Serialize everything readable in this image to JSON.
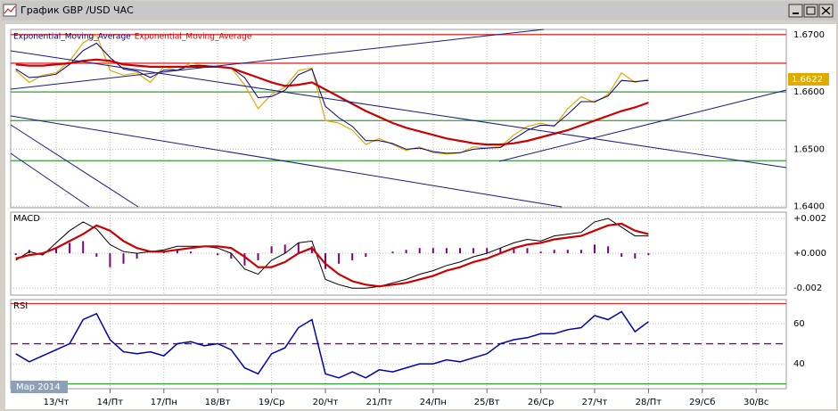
{
  "window": {
    "title": "График GBP /USD  ЧАС"
  },
  "time_axis": {
    "labels": [
      "13/Чт",
      "14/Пт",
      "17/Пн",
      "18/Вт",
      "19/Ср",
      "20/Чт",
      "21/Пт",
      "24/Пн",
      "25/Вт",
      "26/Ср",
      "27/Чт",
      "28/Пт",
      "29/Сб",
      "30/Вс"
    ],
    "month": "Мар 2014"
  },
  "chart_data": [
    {
      "type": "line",
      "x": [
        -0.75,
        -0.5,
        -0.25,
        0,
        0.25,
        0.5,
        0.75,
        1,
        1.25,
        1.5,
        1.75,
        2,
        2.25,
        2.5,
        2.75,
        3,
        3.25,
        3.5,
        3.75,
        4,
        4.25,
        4.5,
        4.75,
        5,
        5.25,
        5.5,
        5.75,
        6,
        6.25,
        6.5,
        6.75,
        7,
        7.25,
        7.5,
        7.75,
        8,
        8.25,
        8.5,
        8.75,
        9,
        9.25,
        9.5,
        9.75,
        10,
        10.25,
        10.5,
        10.75,
        11
      ],
      "color": "#e0aa00",
      "values": [
        1.66375,
        1.66167,
        1.66292,
        1.66333,
        1.66542,
        1.66854,
        1.67,
        1.66375,
        1.66292,
        1.66333,
        1.66167,
        1.66438,
        1.66375,
        1.665,
        1.66458,
        1.66438,
        1.66417,
        1.66125,
        1.65708,
        1.65958,
        1.66083,
        1.66375,
        1.66417,
        1.655,
        1.65458,
        1.65333,
        1.65083,
        1.65188,
        1.65083,
        1.64979,
        1.65042,
        1.64938,
        1.64917,
        1.64938,
        1.65042,
        1.65021,
        1.65042,
        1.6525,
        1.65396,
        1.65458,
        1.65396,
        1.65708,
        1.65917,
        1.65813,
        1.65958,
        1.66333,
        1.66167,
        1.6622
      ],
      "series": [
        {
          "name": "Exponential_Moving_Average",
          "color": "#000080",
          "values": [
            1.664,
            1.6625,
            1.6627,
            1.6631,
            1.6648,
            1.6672,
            1.6685,
            1.666,
            1.664,
            1.6636,
            1.6625,
            1.6638,
            1.6638,
            1.6646,
            1.6646,
            1.6644,
            1.6642,
            1.6625,
            1.659,
            1.6592,
            1.6603,
            1.663,
            1.664,
            1.6575,
            1.6555,
            1.654,
            1.6515,
            1.6515,
            1.651,
            1.65,
            1.6502,
            1.6496,
            1.6493,
            1.6494,
            1.65,
            1.6502,
            1.6503,
            1.6518,
            1.6533,
            1.6542,
            1.6541,
            1.6561,
            1.6583,
            1.6583,
            1.6593,
            1.662,
            1.6618,
            1.662
          ]
        },
        {
          "name": "Exponential_Moving_Average",
          "color": "#cc0000",
          "values": [
            1.66479,
            1.66458,
            1.66458,
            1.66479,
            1.665,
            1.66542,
            1.66563,
            1.66542,
            1.66479,
            1.66458,
            1.66438,
            1.66438,
            1.66438,
            1.66438,
            1.66438,
            1.66438,
            1.66417,
            1.66333,
            1.6625,
            1.66167,
            1.66104,
            1.66125,
            1.66167,
            1.66042,
            1.65917,
            1.65792,
            1.65667,
            1.65563,
            1.65458,
            1.65375,
            1.65313,
            1.6525,
            1.65188,
            1.65146,
            1.65104,
            1.65083,
            1.65083,
            1.65104,
            1.65146,
            1.65208,
            1.65271,
            1.65333,
            1.65417,
            1.655,
            1.65583,
            1.65667,
            1.65729,
            1.65813
          ]
        }
      ],
      "levels": [
        {
          "value": 1.67,
          "color": "#e03030"
        },
        {
          "value": 1.665,
          "color": "#e03030"
        },
        {
          "value": 1.66,
          "color": "#30a030"
        },
        {
          "value": 1.655,
          "color": "#30a030"
        },
        {
          "value": 1.648,
          "color": "#30a030"
        }
      ],
      "last_value": 1.6622,
      "ylim": [
        1.6398,
        1.6709
      ],
      "yticks": [
        {
          "value": 1.64,
          "label": "1.6400"
        },
        {
          "value": 1.65,
          "label": "1.6500"
        },
        {
          "value": 1.66,
          "label": "1.6600"
        },
        {
          "value": 1.67,
          "label": "1.6700"
        }
      ]
    },
    {
      "type": "line",
      "title": "MACD",
      "x": [
        -0.75,
        -0.5,
        -0.25,
        0,
        0.25,
        0.5,
        0.75,
        1,
        1.25,
        1.5,
        1.75,
        2,
        2.25,
        2.5,
        2.75,
        3,
        3.25,
        3.5,
        3.75,
        4,
        4.25,
        4.5,
        4.75,
        5,
        5.25,
        5.5,
        5.75,
        6,
        6.25,
        6.5,
        6.75,
        7,
        7.25,
        7.5,
        7.75,
        8,
        8.25,
        8.5,
        8.75,
        9,
        9.25,
        9.5,
        9.75,
        10,
        10.25,
        10.5,
        10.75,
        11
      ],
      "series": [
        {
          "color": "#000000",
          "values": [
            -0.0004,
            0.0001,
            -0.0001,
            0.0006,
            0.0013,
            0.0018,
            0.0014,
            0.0005,
            0.0001,
            0,
            0.0001,
            0.0002,
            0.0004,
            0.0004,
            0.0004,
            0.0003,
            0,
            -0.0009,
            -0.0012,
            -0.0004,
            0,
            0.0006,
            0.0007,
            -0.0015,
            -0.0018,
            -0.002,
            -0.002,
            -0.0019,
            -0.0017,
            -0.0015,
            -0.0012,
            -0.001,
            -0.0007,
            -0.0005,
            -0.0002,
            0,
            0.0003,
            0.0006,
            0.0008,
            0.0007,
            0.001,
            0.0011,
            0.0012,
            0.0018,
            0.002,
            0.0015,
            0.001,
            0.001
          ]
        },
        {
          "color": "#cc0000",
          "values": [
            -0.0003,
            -0.0001,
            0,
            0.0003,
            0.0007,
            0.0011,
            0.0016,
            0.0013,
            0.0007,
            0.0003,
            0.0001,
            0.0001,
            0.0002,
            0.0003,
            0.0004,
            0.0004,
            0.0003,
            -0.0002,
            -0.0008,
            -0.0008,
            -0.0005,
            0,
            0.0003,
            -0.0006,
            -0.0012,
            -0.0016,
            -0.0018,
            -0.0019,
            -0.0018,
            -0.0017,
            -0.0015,
            -0.0013,
            -0.001,
            -0.0008,
            -0.0005,
            -0.0003,
            0,
            0.0003,
            0.0005,
            0.0006,
            0.0008,
            0.0009,
            0.001,
            0.0013,
            0.0016,
            0.0017,
            0.0013,
            0.0011
          ]
        }
      ],
      "histogram": {
        "color": "#800080",
        "values": [
          -0.0001,
          0.0002,
          -0.0001,
          0.0003,
          0.0006,
          0.0007,
          -0.0002,
          -0.0008,
          -0.0006,
          -0.0003,
          0,
          0.0001,
          0.0002,
          0.0001,
          0,
          -0.0001,
          -0.0003,
          -0.0007,
          -0.0004,
          0.0004,
          0.0005,
          0.0006,
          0.0004,
          -0.0009,
          -0.0006,
          -0.0004,
          -0.0002,
          0,
          0.0001,
          0.0002,
          0.0003,
          0.0003,
          0.0003,
          0.0003,
          0.0003,
          0.0003,
          0.0003,
          0.0003,
          0.0003,
          0.0001,
          0.0002,
          0.0002,
          0.0002,
          0.0005,
          0.0004,
          -0.0002,
          -0.0003,
          -0.0001
        ]
      },
      "ylim": [
        -0.0024,
        0.00236
      ],
      "yticks": [
        {
          "value": -0.002,
          "label": "-0.002"
        },
        {
          "value": 0,
          "label": "+0.000"
        },
        {
          "value": 0.002,
          "label": "+0.002"
        }
      ]
    },
    {
      "type": "line",
      "title": "RSI",
      "x": [
        -0.75,
        -0.5,
        -0.25,
        0,
        0.25,
        0.5,
        0.75,
        1,
        1.25,
        1.5,
        1.75,
        2,
        2.25,
        2.5,
        2.75,
        3,
        3.25,
        3.5,
        3.75,
        4,
        4.25,
        4.5,
        4.75,
        5,
        5.25,
        5.5,
        5.75,
        6,
        6.25,
        6.5,
        6.75,
        7,
        7.25,
        7.5,
        7.75,
        8,
        8.25,
        8.5,
        8.75,
        9,
        9.25,
        9.5,
        9.75,
        10,
        10.25,
        10.5,
        10.75,
        11
      ],
      "color": "#0000b0",
      "values": [
        45,
        41,
        44,
        47,
        50,
        62,
        65,
        52,
        46,
        45,
        46,
        44,
        50,
        51,
        49,
        50,
        47,
        38,
        35,
        45,
        48,
        58,
        62,
        35,
        33,
        36,
        33,
        37,
        36,
        38,
        40,
        40,
        42,
        41,
        43,
        45,
        50,
        52,
        53,
        55,
        55,
        57,
        58,
        64,
        62,
        66,
        56,
        61
      ],
      "levels": [
        {
          "value": 70,
          "color": "#e03030"
        },
        {
          "value": 50,
          "color": "#800080",
          "dash": true
        },
        {
          "value": 30,
          "color": "#30a030"
        }
      ],
      "ylim": [
        27.6,
        72
      ],
      "yticks": [
        40,
        60
      ]
    }
  ]
}
